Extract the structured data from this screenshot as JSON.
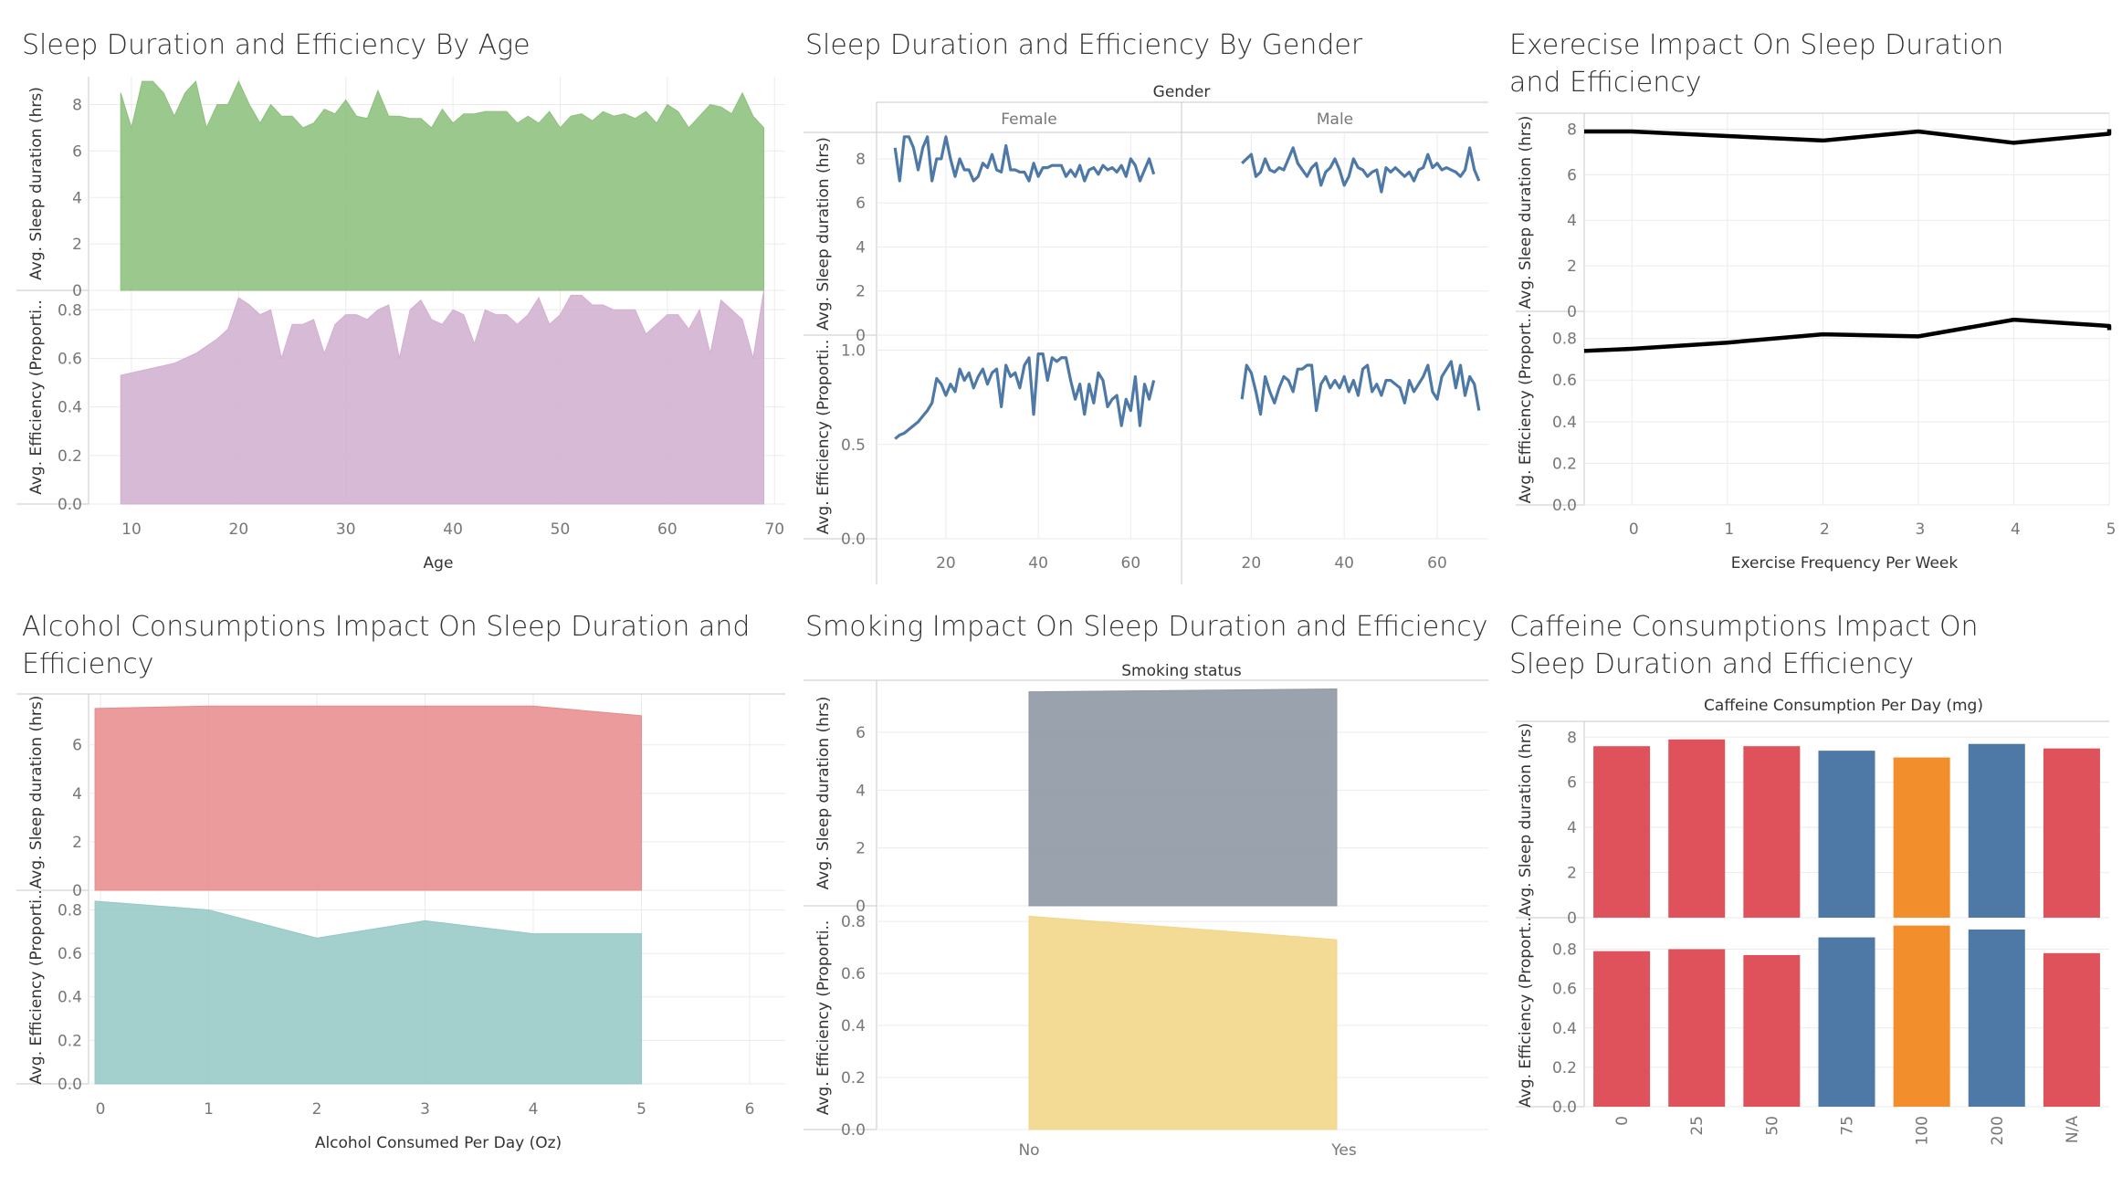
{
  "dashboard": {
    "panels": {
      "age": {
        "title": "Sleep Duration and Efficiency By Age"
      },
      "gender": {
        "title": "Sleep Duration and Efficiency By Gender"
      },
      "exercise": {
        "title": "Exerecise Impact On Sleep Duration and Efficiency"
      },
      "alcohol": {
        "title": "Alcohol Consumptions Impact On Sleep Duration and Efficiency"
      },
      "smoking": {
        "title": "Smoking Impact On Sleep Duration and Efficiency"
      },
      "caffeine": {
        "title": "Caffeine Consumptions Impact On Sleep Duration and Efficiency"
      }
    }
  },
  "chart_data": [
    {
      "id": "age",
      "type": "area",
      "xlabel": "Age",
      "x_ticks": [
        10,
        20,
        30,
        40,
        50,
        60,
        70
      ],
      "xlim": [
        6,
        71
      ],
      "colors": {
        "top": "#8dc07d",
        "bottom": "#d2b0cf"
      },
      "x": [
        9,
        10,
        11,
        12,
        13,
        14,
        15,
        16,
        17,
        18,
        19,
        20,
        21,
        22,
        23,
        24,
        25,
        26,
        27,
        28,
        29,
        30,
        31,
        32,
        33,
        34,
        35,
        36,
        37,
        38,
        39,
        40,
        41,
        42,
        43,
        44,
        45,
        46,
        47,
        48,
        49,
        50,
        51,
        52,
        53,
        54,
        55,
        56,
        57,
        58,
        59,
        60,
        61,
        62,
        63,
        64,
        65,
        66,
        67,
        68,
        69
      ],
      "series": [
        {
          "ylabel": "Avg. Sleep duration (hrs)",
          "ylim": [
            0,
            9.2
          ],
          "ticks": [
            0,
            2,
            4,
            6,
            8
          ],
          "values": [
            8.5,
            7,
            9,
            9,
            8.5,
            7.5,
            8.5,
            9,
            7,
            8,
            8,
            9,
            8,
            7.2,
            8,
            7.5,
            7.5,
            7,
            7.2,
            7.8,
            7.6,
            8.2,
            7.5,
            7.4,
            8.6,
            7.5,
            7.5,
            7.4,
            7.4,
            7,
            7.8,
            7.2,
            7.6,
            7.6,
            7.7,
            7.7,
            7.7,
            7.2,
            7.5,
            7.2,
            7.7,
            7,
            7.5,
            7.6,
            7.3,
            7.7,
            7.5,
            7.6,
            7.4,
            7.7,
            7.2,
            8,
            7.7,
            7,
            7.5,
            8,
            7.9,
            7.6,
            8.5,
            7.5,
            7
          ]
        },
        {
          "ylabel": "Avg. Efficiency (Proportion)",
          "ylim": [
            0,
            0.88
          ],
          "ticks": [
            0.0,
            0.2,
            0.4,
            0.6,
            0.8
          ],
          "values": [
            0.53,
            0.54,
            0.55,
            0.56,
            0.57,
            0.58,
            0.6,
            0.62,
            0.65,
            0.68,
            0.72,
            0.85,
            0.82,
            0.78,
            0.8,
            0.6,
            0.74,
            0.74,
            0.76,
            0.62,
            0.74,
            0.78,
            0.78,
            0.76,
            0.8,
            0.82,
            0.6,
            0.8,
            0.84,
            0.76,
            0.74,
            0.8,
            0.78,
            0.66,
            0.8,
            0.78,
            0.78,
            0.74,
            0.78,
            0.85,
            0.74,
            0.78,
            0.86,
            0.86,
            0.82,
            0.82,
            0.8,
            0.8,
            0.8,
            0.7,
            0.74,
            0.78,
            0.78,
            0.72,
            0.8,
            0.62,
            0.84,
            0.8,
            0.76,
            0.6,
            0.88
          ]
        }
      ]
    },
    {
      "id": "gender",
      "type": "line",
      "header": "Gender",
      "color": "#4e79a7",
      "x_ticks": [
        20,
        40,
        60
      ],
      "xlim": [
        5,
        71
      ],
      "facets": [
        {
          "name": "Female",
          "x": [
            9,
            10,
            11,
            12,
            13,
            14,
            15,
            16,
            17,
            18,
            19,
            20,
            21,
            22,
            23,
            24,
            25,
            26,
            27,
            28,
            29,
            30,
            31,
            32,
            33,
            34,
            35,
            36,
            37,
            38,
            39,
            40,
            41,
            42,
            43,
            44,
            45,
            46,
            47,
            48,
            49,
            50,
            51,
            52,
            53,
            54,
            55,
            56,
            57,
            58,
            59,
            60,
            61,
            62,
            63,
            64,
            65
          ],
          "sleep": [
            8.5,
            7,
            9,
            9,
            8.5,
            7.5,
            8.5,
            9,
            7,
            8,
            8,
            9,
            8,
            7.2,
            8,
            7.5,
            7.5,
            7,
            7.2,
            7.8,
            7.6,
            8.2,
            7.5,
            7.4,
            8.6,
            7.5,
            7.5,
            7.4,
            7.4,
            7,
            7.8,
            7.2,
            7.6,
            7.6,
            7.7,
            7.7,
            7.7,
            7.2,
            7.5,
            7.2,
            7.7,
            7,
            7.5,
            7.6,
            7.3,
            7.7,
            7.5,
            7.6,
            7.4,
            7.7,
            7.2,
            8,
            7.7,
            7,
            7.5,
            8,
            7.3
          ],
          "efficiency": [
            0.53,
            0.55,
            0.56,
            0.58,
            0.6,
            0.62,
            0.65,
            0.68,
            0.72,
            0.85,
            0.82,
            0.76,
            0.82,
            0.78,
            0.9,
            0.84,
            0.88,
            0.8,
            0.86,
            0.9,
            0.82,
            0.88,
            0.9,
            0.7,
            0.92,
            0.86,
            0.88,
            0.8,
            0.92,
            0.96,
            0.66,
            0.98,
            0.98,
            0.84,
            0.96,
            0.94,
            0.96,
            0.96,
            0.84,
            0.74,
            0.82,
            0.66,
            0.82,
            0.72,
            0.88,
            0.84,
            0.7,
            0.74,
            0.76,
            0.6,
            0.74,
            0.68,
            0.86,
            0.6,
            0.82,
            0.74,
            0.84
          ]
        },
        {
          "name": "Male",
          "x": [
            18,
            19,
            20,
            21,
            22,
            23,
            24,
            25,
            26,
            27,
            28,
            29,
            30,
            31,
            32,
            33,
            34,
            35,
            36,
            37,
            38,
            39,
            40,
            41,
            42,
            43,
            44,
            45,
            46,
            47,
            48,
            49,
            50,
            51,
            52,
            53,
            54,
            55,
            56,
            57,
            58,
            59,
            60,
            61,
            62,
            63,
            64,
            65,
            66,
            67,
            68,
            69
          ],
          "sleep": [
            7.8,
            8,
            8.2,
            7.2,
            7.4,
            8,
            7.5,
            7.4,
            7.6,
            7.5,
            8,
            8.5,
            7.8,
            7.5,
            7.2,
            7.6,
            7.8,
            6.8,
            7.4,
            7.6,
            8,
            7.5,
            6.8,
            7.2,
            8,
            7.6,
            7.5,
            7.2,
            7.4,
            7.5,
            6.5,
            7.6,
            7.4,
            7.6,
            7.4,
            7.2,
            7.4,
            7,
            7.5,
            7.6,
            8.2,
            7.6,
            7.8,
            7.5,
            7.6,
            7.5,
            7.4,
            7.2,
            7.5,
            8.5,
            7.5,
            7
          ],
          "efficiency": [
            0.74,
            0.92,
            0.88,
            0.78,
            0.66,
            0.86,
            0.78,
            0.72,
            0.8,
            0.86,
            0.84,
            0.78,
            0.9,
            0.9,
            0.92,
            0.92,
            0.68,
            0.82,
            0.86,
            0.8,
            0.84,
            0.8,
            0.86,
            0.78,
            0.84,
            0.76,
            0.9,
            0.92,
            0.78,
            0.82,
            0.76,
            0.84,
            0.84,
            0.82,
            0.8,
            0.72,
            0.84,
            0.78,
            0.82,
            0.86,
            0.92,
            0.78,
            0.74,
            0.86,
            0.9,
            0.94,
            0.8,
            0.92,
            0.76,
            0.86,
            0.82,
            0.68
          ]
        }
      ],
      "rows": [
        {
          "ylabel": "Avg. Sleep duration (hrs)",
          "ylim": [
            0,
            9.2
          ],
          "ticks": [
            0,
            2,
            4,
            6,
            8
          ]
        },
        {
          "ylabel": "Avg. Efficiency (Proportion)",
          "ylim": [
            0,
            1.08
          ],
          "ticks": [
            0.0,
            0.5,
            1.0
          ]
        }
      ]
    },
    {
      "id": "exercise",
      "type": "line",
      "color": "#000000",
      "xlabel": "Exercise Frequency Per Week",
      "x_ticks": [
        0,
        1,
        2,
        3,
        4,
        5
      ],
      "xlim": [
        -0.5,
        5.0
      ],
      "x": [
        -0.5,
        0,
        1,
        2,
        3,
        4,
        5,
        5.5
      ],
      "series": [
        {
          "ylabel": "Avg. Sleep duration (hrs)",
          "ylim": [
            0,
            8.7
          ],
          "ticks": [
            0,
            2,
            4,
            6,
            8
          ],
          "values": [
            7.9,
            7.9,
            7.7,
            7.5,
            7.9,
            7.4,
            7.8,
            8.0
          ]
        },
        {
          "ylabel": "Avg. Efficiency (Proportion)",
          "ylim": [
            0,
            0.93
          ],
          "ticks": [
            0.0,
            0.2,
            0.4,
            0.6,
            0.8
          ],
          "values": [
            0.74,
            0.75,
            0.78,
            0.82,
            0.81,
            0.89,
            0.86,
            0.84
          ]
        }
      ]
    },
    {
      "id": "alcohol",
      "type": "area",
      "xlabel": "Alcohol Consumed Per Day (Oz)",
      "x_ticks": [
        0,
        1,
        2,
        3,
        4,
        5,
        6
      ],
      "xlim": [
        -0.05,
        6.0
      ],
      "colors": {
        "top": "#e88a8b",
        "bottom": "#93c8c4"
      },
      "x": [
        -0.05,
        1,
        2,
        3,
        4,
        5
      ],
      "series": [
        {
          "ylabel": "Avg. Sleep duration (hrs)",
          "ylim": [
            0,
            8.1
          ],
          "ticks": [
            0,
            2,
            4,
            6
          ],
          "values": [
            7.5,
            7.6,
            7.6,
            7.6,
            7.6,
            7.2
          ]
        },
        {
          "ylabel": "Avg. Efficiency (Proportion)",
          "ylim": [
            0,
            0.89
          ],
          "ticks": [
            0.0,
            0.2,
            0.4,
            0.6,
            0.8
          ],
          "values": [
            0.84,
            0.8,
            0.67,
            0.75,
            0.69,
            0.69
          ]
        }
      ]
    },
    {
      "id": "smoking",
      "type": "area",
      "header": "Smoking status",
      "categories": [
        "No",
        "Yes"
      ],
      "colors": {
        "top": "#8f98a4",
        "bottom": "#f2d68a"
      },
      "series": [
        {
          "ylabel": "Avg. Sleep duration (hrs)",
          "ylim": [
            0,
            7.8
          ],
          "ticks": [
            0,
            2,
            4,
            6
          ],
          "values": [
            7.4,
            7.5
          ]
        },
        {
          "ylabel": "Avg. Efficiency (Proportion)",
          "ylim": [
            0,
            0.86
          ],
          "ticks": [
            0.0,
            0.2,
            0.4,
            0.6,
            0.8
          ],
          "values": [
            0.82,
            0.73
          ]
        }
      ]
    },
    {
      "id": "caffeine",
      "type": "bar",
      "header": "Caffeine Consumption Per Day (mg)",
      "categories": [
        "0",
        "25",
        "50",
        "75",
        "100",
        "200",
        "N/A"
      ],
      "bar_colors": [
        "#e0525b",
        "#e0525b",
        "#e0525b",
        "#4e79a7",
        "#f28e2b",
        "#4e79a7",
        "#e0525b"
      ],
      "series": [
        {
          "ylabel": "Avg. Sleep duration (hrs)",
          "ylim": [
            0,
            8.7
          ],
          "ticks": [
            0,
            2,
            4,
            6,
            8
          ],
          "values": [
            7.6,
            7.9,
            7.6,
            7.4,
            7.1,
            7.7,
            7.5
          ]
        },
        {
          "ylabel": "Avg. Efficiency (Proportion)",
          "ylim": [
            0,
            0.96
          ],
          "ticks": [
            0.0,
            0.2,
            0.4,
            0.6,
            0.8
          ],
          "values": [
            0.79,
            0.8,
            0.77,
            0.86,
            0.92,
            0.9,
            0.78
          ]
        }
      ]
    }
  ]
}
